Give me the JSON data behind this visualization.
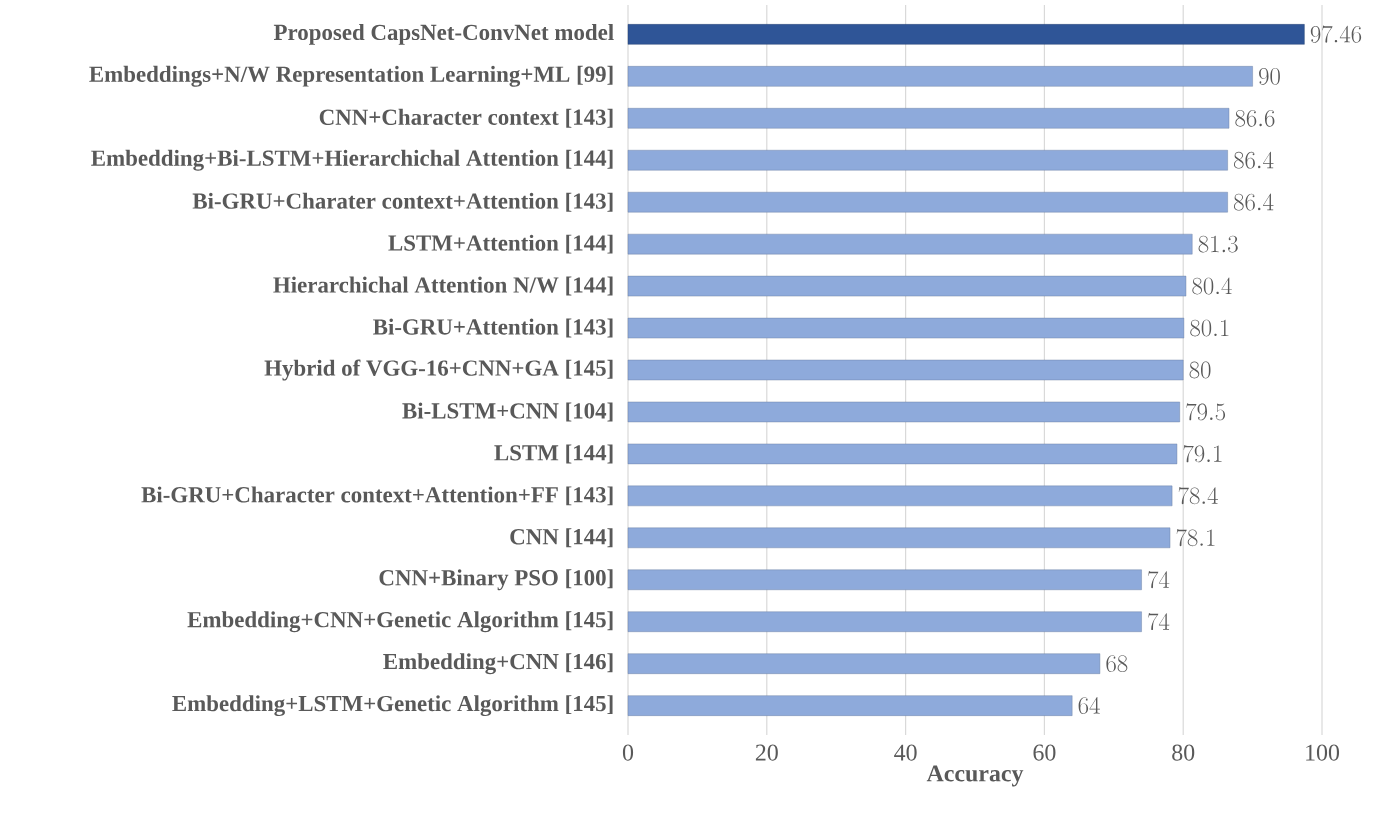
{
  "chart_data": {
    "type": "bar",
    "orientation": "horizontal",
    "xlabel": "Accuracy",
    "categories": [
      "Proposed CapsNet-ConvNet model",
      "Embeddings+N/W Representation Learning+ML [99]",
      "CNN+Character context [143]",
      "Embedding+Bi-LSTM+Hierarchichal Attention [144]",
      "Bi-GRU+Charater context+Attention [143]",
      "LSTM+Attention [144]",
      "Hierarchichal Attention N/W [144]",
      "Bi-GRU+Attention [143]",
      "Hybrid of VGG-16+CNN+GA [145]",
      "Bi-LSTM+CNN [104]",
      "LSTM [144]",
      "Bi-GRU+Character context+Attention+FF [143]",
      "CNN [144]",
      "CNN+Binary PSO [100]",
      "Embedding+CNN+Genetic Algorithm [145]",
      "Embedding+CNN [146]",
      "Embedding+LSTM+Genetic Algorithm [145]"
    ],
    "values": [
      97.46,
      90,
      86.6,
      86.4,
      86.4,
      81.3,
      80.4,
      80.1,
      80,
      79.5,
      79.1,
      78.4,
      78.1,
      74,
      74,
      68,
      64
    ],
    "colors": [
      "#2f5597",
      "#8eaadb",
      "#8eaadb",
      "#8eaadb",
      "#8eaadb",
      "#8eaadb",
      "#8eaadb",
      "#8eaadb",
      "#8eaadb",
      "#8eaadb",
      "#8eaadb",
      "#8eaadb",
      "#8eaadb",
      "#8eaadb",
      "#8eaadb",
      "#8eaadb",
      "#8eaadb"
    ],
    "xlim": [
      0,
      100
    ],
    "xticks": [
      0,
      20,
      40,
      60,
      80,
      100
    ],
    "grid": "x",
    "data_labels": true
  }
}
